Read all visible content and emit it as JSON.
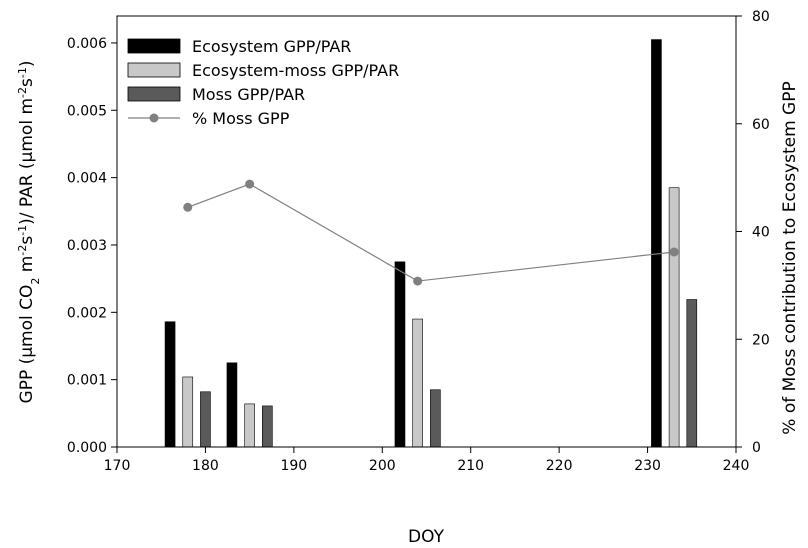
{
  "chart_data": {
    "type": "bar",
    "xlabel": "DOY",
    "ylabel": "GPP (µmol CO₂ m⁻²s⁻¹)/ PAR (µmol m⁻²s⁻¹)",
    "ylabel_parts": [
      "GPP (µmol CO",
      "2",
      " m",
      "-2",
      "s",
      "-1",
      ")/ PAR (µmol m",
      "-2",
      "s",
      "-1",
      ")"
    ],
    "y2label": "% of Moss contribution to Ecosystem GPP",
    "xlim": [
      170,
      240
    ],
    "ylim": [
      0,
      0.0064
    ],
    "y2lim": [
      0,
      80
    ],
    "xticks": [
      "170",
      "180",
      "190",
      "200",
      "210",
      "220",
      "230",
      "240"
    ],
    "yticks": [
      "0.000",
      "0.001",
      "0.002",
      "0.003",
      "0.004",
      "0.005",
      "0.006"
    ],
    "y2ticks": [
      "0",
      "20",
      "40",
      "60",
      "80"
    ],
    "legend_position": "top-left",
    "series": [
      {
        "name": "Ecosystem GPP/PAR",
        "kind": "bar",
        "color": "#000000",
        "x": [
          176,
          183,
          202,
          231
        ],
        "values": [
          0.00186,
          0.00125,
          0.00275,
          0.00605
        ]
      },
      {
        "name": "Ecosystem-moss GPP/PAR",
        "kind": "bar",
        "color": "#c8c8c8",
        "x": [
          178,
          185,
          204,
          233
        ],
        "values": [
          0.00104,
          0.00064,
          0.0019,
          0.00385
        ]
      },
      {
        "name": "Moss GPP/PAR",
        "kind": "bar",
        "color": "#5a5a5a",
        "x": [
          180,
          187,
          206,
          235
        ],
        "values": [
          0.00082,
          0.00061,
          0.00085,
          0.00219
        ]
      },
      {
        "name": "% Moss GPP",
        "kind": "line",
        "axis": "right",
        "color": "#808080",
        "x": [
          178,
          185,
          204,
          233
        ],
        "values": [
          44.5,
          48.8,
          30.8,
          36.2
        ]
      }
    ]
  }
}
